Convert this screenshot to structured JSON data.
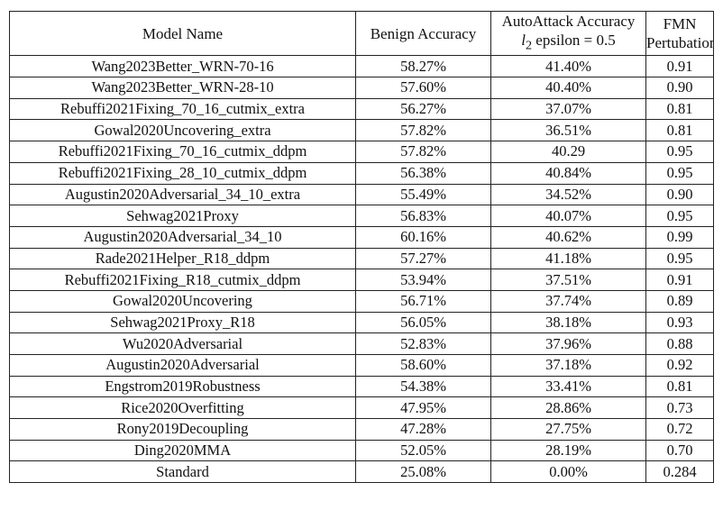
{
  "table": {
    "headers": {
      "model_name": "Model Name",
      "benign_accuracy": "Benign Accuracy",
      "autoattack_line1": "AutoAttack Accuracy",
      "autoattack_line2_var": "l",
      "autoattack_line2_sub": "2",
      "autoattack_line2_rest": " epsilon = 0.5",
      "fmn_line1": "FMN",
      "fmn_line2": "Pertubation"
    },
    "rows": [
      {
        "model": "Wang2023Better_WRN-70-16",
        "benign": "58.27%",
        "autoattack": "41.40%",
        "fmn": "0.91"
      },
      {
        "model": "Wang2023Better_WRN-28-10",
        "benign": "57.60%",
        "autoattack": "40.40%",
        "fmn": "0.90"
      },
      {
        "model": "Rebuffi2021Fixing_70_16_cutmix_extra",
        "benign": "56.27%",
        "autoattack": "37.07%",
        "fmn": "0.81"
      },
      {
        "model": "Gowal2020Uncovering_extra",
        "benign": "57.82%",
        "autoattack": "36.51%",
        "fmn": "0.81"
      },
      {
        "model": "Rebuffi2021Fixing_70_16_cutmix_ddpm",
        "benign": "57.82%",
        "autoattack": "40.29",
        "fmn": "0.95"
      },
      {
        "model": "Rebuffi2021Fixing_28_10_cutmix_ddpm",
        "benign": "56.38%",
        "autoattack": "40.84%",
        "fmn": "0.95"
      },
      {
        "model": "Augustin2020Adversarial_34_10_extra",
        "benign": "55.49%",
        "autoattack": "34.52%",
        "fmn": "0.90"
      },
      {
        "model": "Sehwag2021Proxy",
        "benign": "56.83%",
        "autoattack": "40.07%",
        "fmn": "0.95"
      },
      {
        "model": "Augustin2020Adversarial_34_10",
        "benign": "60.16%",
        "autoattack": "40.62%",
        "fmn": "0.99"
      },
      {
        "model": "Rade2021Helper_R18_ddpm",
        "benign": "57.27%",
        "autoattack": "41.18%",
        "fmn": "0.95"
      },
      {
        "model": "Rebuffi2021Fixing_R18_cutmix_ddpm",
        "benign": "53.94%",
        "autoattack": "37.51%",
        "fmn": "0.91"
      },
      {
        "model": "Gowal2020Uncovering",
        "benign": "56.71%",
        "autoattack": "37.74%",
        "fmn": "0.89"
      },
      {
        "model": "Sehwag2021Proxy_R18",
        "benign": "56.05%",
        "autoattack": "38.18%",
        "fmn": "0.93"
      },
      {
        "model": "Wu2020Adversarial",
        "benign": "52.83%",
        "autoattack": "37.96%",
        "fmn": "0.88"
      },
      {
        "model": "Augustin2020Adversarial",
        "benign": "58.60%",
        "autoattack": "37.18%",
        "fmn": "0.92"
      },
      {
        "model": "Engstrom2019Robustness",
        "benign": "54.38%",
        "autoattack": "33.41%",
        "fmn": "0.81"
      },
      {
        "model": "Rice2020Overfitting",
        "benign": "47.95%",
        "autoattack": "28.86%",
        "fmn": "0.73"
      },
      {
        "model": "Rony2019Decoupling",
        "benign": "47.28%",
        "autoattack": "27.75%",
        "fmn": "0.72"
      },
      {
        "model": "Ding2020MMA",
        "benign": "52.05%",
        "autoattack": "28.19%",
        "fmn": "0.70"
      },
      {
        "model": "Standard",
        "benign": "25.08%",
        "autoattack": "0.00%",
        "fmn": "0.284"
      }
    ]
  }
}
